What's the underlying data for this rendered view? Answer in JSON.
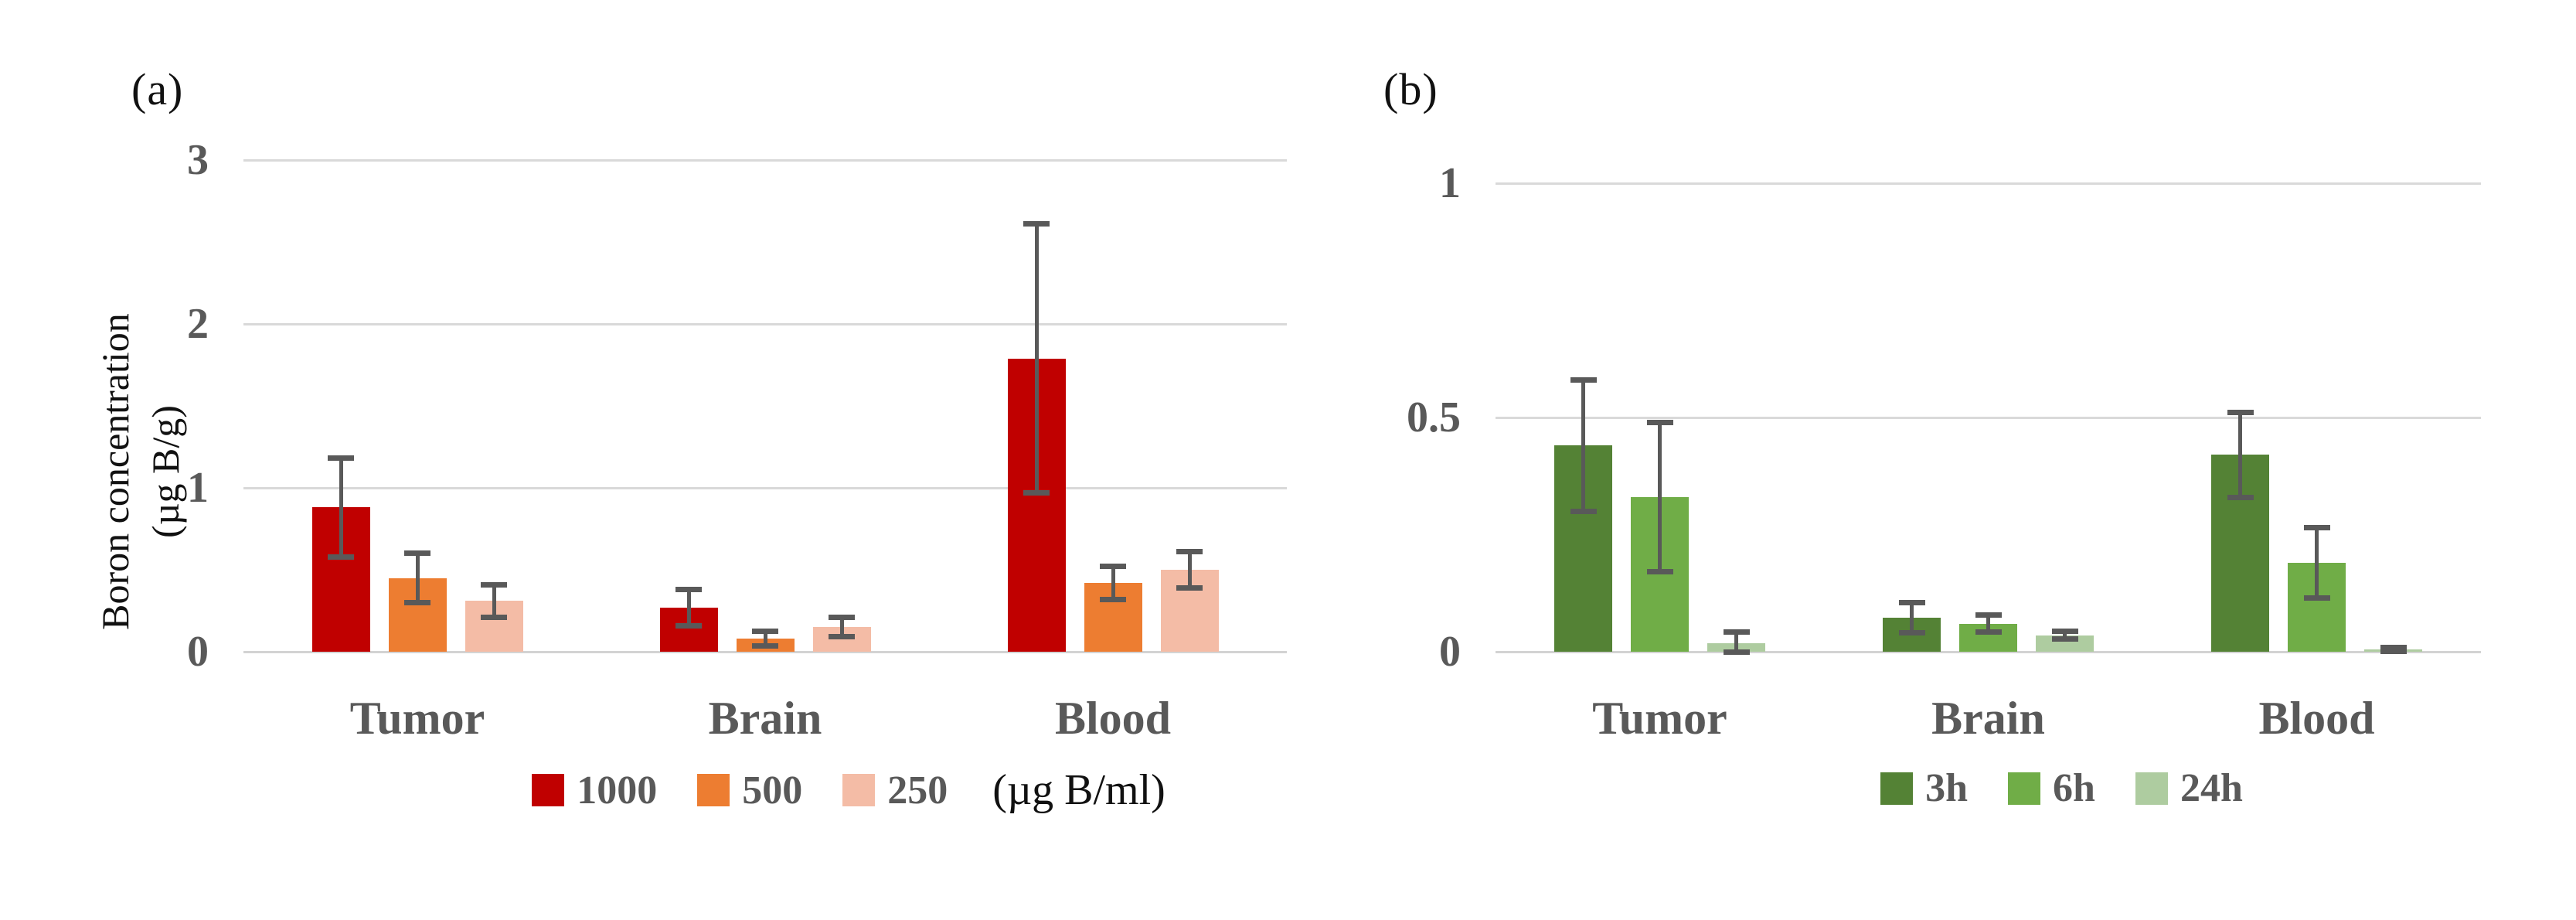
{
  "figure": {
    "background": "#FFFFFF",
    "colors": {
      "gridline": "#D9D9D9",
      "error_bar": "#595959",
      "label_gray": "#595959",
      "text_black": "#111111"
    }
  },
  "chart_data": [
    {
      "type": "bar",
      "panel": "(a)",
      "title": "",
      "ylabel_line1": "Boron concentration",
      "ylabel_line2": "(µg B/g)",
      "xlabel": "",
      "categories": [
        "Tumor",
        "Brain",
        "Blood"
      ],
      "series": [
        {
          "name": "1000",
          "color": "#C00000",
          "values": [
            0.88,
            0.27,
            1.79
          ],
          "errors": [
            0.3,
            0.11,
            0.82
          ]
        },
        {
          "name": "500",
          "color": "#ED7D31",
          "values": [
            0.45,
            0.08,
            0.42
          ],
          "errors": [
            0.15,
            0.045,
            0.1
          ]
        },
        {
          "name": "250",
          "color": "#F4BCA6",
          "values": [
            0.31,
            0.15,
            0.5
          ],
          "errors": [
            0.1,
            0.06,
            0.11
          ]
        }
      ],
      "legend_suffix": "(µg B/ml)",
      "ylim": [
        0,
        3
      ],
      "ytick_values": [
        0,
        1,
        2,
        3
      ],
      "ytick_labels": [
        "0",
        "1",
        "2",
        "3"
      ],
      "grid": true,
      "legend_position": "bottom"
    },
    {
      "type": "bar",
      "panel": "(b)",
      "title": "",
      "xlabel": "",
      "categories": [
        "Tumor",
        "Brain",
        "Blood"
      ],
      "series": [
        {
          "name": "3h",
          "color": "#548235",
          "values": [
            0.44,
            0.073,
            0.42
          ],
          "errors": [
            0.14,
            0.032,
            0.09
          ]
        },
        {
          "name": "6h",
          "color": "#70AD47",
          "values": [
            0.33,
            0.06,
            0.19
          ],
          "errors": [
            0.16,
            0.018,
            0.075
          ]
        },
        {
          "name": "24h",
          "color": "#AECCA0",
          "values": [
            0.018,
            0.035,
            0.005
          ],
          "errors": [
            0.024,
            0.008,
            0.004
          ]
        }
      ],
      "ylim": [
        0,
        1
      ],
      "ytick_values": [
        0,
        0.5,
        1
      ],
      "ytick_labels": [
        "0",
        "0.5",
        "1"
      ],
      "grid": true,
      "legend_position": "bottom"
    }
  ]
}
